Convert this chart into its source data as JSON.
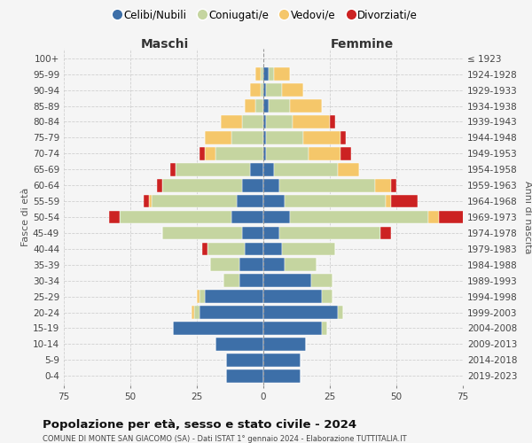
{
  "age_groups": [
    "0-4",
    "5-9",
    "10-14",
    "15-19",
    "20-24",
    "25-29",
    "30-34",
    "35-39",
    "40-44",
    "45-49",
    "50-54",
    "55-59",
    "60-64",
    "65-69",
    "70-74",
    "75-79",
    "80-84",
    "85-89",
    "90-94",
    "95-99",
    "100+"
  ],
  "birth_years": [
    "2019-2023",
    "2014-2018",
    "2009-2013",
    "2004-2008",
    "1999-2003",
    "1994-1998",
    "1989-1993",
    "1984-1988",
    "1979-1983",
    "1974-1978",
    "1969-1973",
    "1964-1968",
    "1959-1963",
    "1954-1958",
    "1949-1953",
    "1944-1948",
    "1939-1943",
    "1934-1938",
    "1929-1933",
    "1924-1928",
    "≤ 1923"
  ],
  "colors": {
    "celibi": "#3d6fa8",
    "coniugati": "#c5d5a0",
    "vedovi": "#f5c76a",
    "divorziati": "#cc2222"
  },
  "maschi": {
    "celibi": [
      14,
      14,
      18,
      34,
      24,
      22,
      9,
      9,
      7,
      8,
      12,
      10,
      8,
      5,
      0,
      0,
      0,
      0,
      0,
      0,
      0
    ],
    "coniugati": [
      0,
      0,
      0,
      0,
      2,
      2,
      6,
      11,
      14,
      30,
      42,
      32,
      30,
      28,
      18,
      12,
      8,
      3,
      1,
      1,
      0
    ],
    "vedovi": [
      0,
      0,
      0,
      0,
      1,
      1,
      0,
      0,
      0,
      0,
      0,
      1,
      0,
      0,
      4,
      10,
      8,
      4,
      4,
      2,
      0
    ],
    "divorziati": [
      0,
      0,
      0,
      0,
      0,
      0,
      0,
      0,
      2,
      0,
      4,
      2,
      2,
      2,
      2,
      0,
      0,
      0,
      0,
      0,
      0
    ]
  },
  "femmine": {
    "celibi": [
      14,
      14,
      16,
      22,
      28,
      22,
      18,
      8,
      7,
      6,
      10,
      8,
      6,
      4,
      1,
      1,
      1,
      2,
      1,
      2,
      0
    ],
    "coniugati": [
      0,
      0,
      0,
      2,
      2,
      4,
      8,
      12,
      20,
      38,
      52,
      38,
      36,
      24,
      16,
      14,
      10,
      8,
      6,
      2,
      0
    ],
    "vedovi": [
      0,
      0,
      0,
      0,
      0,
      0,
      0,
      0,
      0,
      0,
      4,
      2,
      6,
      8,
      12,
      14,
      14,
      12,
      8,
      6,
      0
    ],
    "divorziati": [
      0,
      0,
      0,
      0,
      0,
      0,
      0,
      0,
      0,
      4,
      10,
      10,
      2,
      0,
      4,
      2,
      2,
      0,
      0,
      0,
      0
    ]
  },
  "xlim": 75,
  "title": "Popolazione per età, sesso e stato civile - 2024",
  "subtitle": "COMUNE DI MONTE SAN GIACOMO (SA) - Dati ISTAT 1° gennaio 2024 - Elaborazione TUTTITALIA.IT",
  "ylabel_left": "Fasce di età",
  "ylabel_right": "Anni di nascita",
  "xlabel_left": "Maschi",
  "xlabel_right": "Femmine",
  "legend_labels": [
    "Celibi/Nubili",
    "Coniugati/e",
    "Vedovi/e",
    "Divorziati/e"
  ],
  "bg_color": "#f5f5f5",
  "grid_color": "#cccccc"
}
